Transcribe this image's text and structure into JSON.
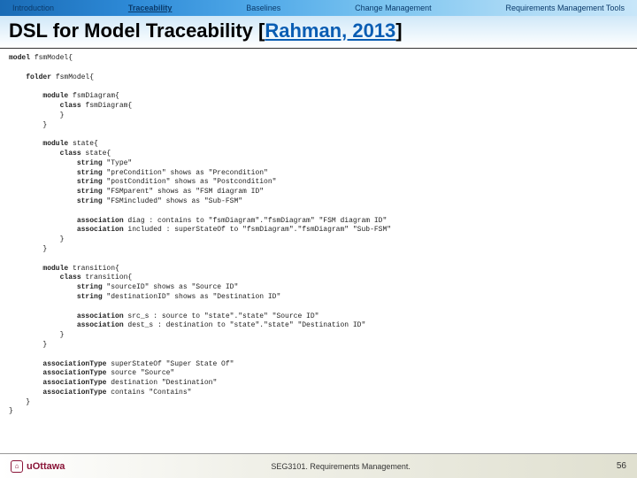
{
  "tabs": {
    "items": [
      {
        "label": "Introduction"
      },
      {
        "label": "Traceability"
      },
      {
        "label": "Baselines"
      },
      {
        "label": "Change Management"
      },
      {
        "label": "Requirements Management Tools"
      }
    ],
    "activeIndex": 1
  },
  "title": {
    "main": "DSL for Model Traceability [",
    "citation": "Rahman, 2013",
    "close": "]"
  },
  "code": {
    "lines": [
      {
        "indent": 0,
        "kw": "model",
        "rest": " fsmModel{"
      },
      {
        "indent": 0,
        "kw": "",
        "rest": ""
      },
      {
        "indent": 1,
        "kw": "folder",
        "rest": " fsmModel{"
      },
      {
        "indent": 0,
        "kw": "",
        "rest": ""
      },
      {
        "indent": 2,
        "kw": "module",
        "rest": " fsmDiagram{"
      },
      {
        "indent": 3,
        "kw": "class",
        "rest": " fsmDiagram{"
      },
      {
        "indent": 3,
        "kw": "",
        "rest": "}"
      },
      {
        "indent": 2,
        "kw": "",
        "rest": "}"
      },
      {
        "indent": 0,
        "kw": "",
        "rest": ""
      },
      {
        "indent": 2,
        "kw": "module",
        "rest": " state{"
      },
      {
        "indent": 3,
        "kw": "class",
        "rest": " state{"
      },
      {
        "indent": 4,
        "kw": "string",
        "rest": " \"Type\""
      },
      {
        "indent": 4,
        "kw": "string",
        "rest": " \"preCondition\" shows as \"Precondition\""
      },
      {
        "indent": 4,
        "kw": "string",
        "rest": " \"postCondition\" shows as \"Postcondition\""
      },
      {
        "indent": 4,
        "kw": "string",
        "rest": " \"FSMparent\" shows as \"FSM diagram ID\""
      },
      {
        "indent": 4,
        "kw": "string",
        "rest": " \"FSMincluded\" shows as \"Sub-FSM\""
      },
      {
        "indent": 0,
        "kw": "",
        "rest": ""
      },
      {
        "indent": 4,
        "kw": "association",
        "rest": " diag : contains to \"fsmDiagram\".\"fsmDiagram\" \"FSM diagram ID\""
      },
      {
        "indent": 4,
        "kw": "association",
        "rest": " included : superStateOf to \"fsmDiagram\".\"fsmDiagram\" \"Sub-FSM\""
      },
      {
        "indent": 3,
        "kw": "",
        "rest": "}"
      },
      {
        "indent": 2,
        "kw": "",
        "rest": "}"
      },
      {
        "indent": 0,
        "kw": "",
        "rest": ""
      },
      {
        "indent": 2,
        "kw": "module",
        "rest": " transition{"
      },
      {
        "indent": 3,
        "kw": "class",
        "rest": " transition{"
      },
      {
        "indent": 4,
        "kw": "string",
        "rest": " \"sourceID\" shows as \"Source ID\""
      },
      {
        "indent": 4,
        "kw": "string",
        "rest": " \"destinationID\" shows as \"Destination ID\""
      },
      {
        "indent": 0,
        "kw": "",
        "rest": ""
      },
      {
        "indent": 4,
        "kw": "association",
        "rest": " src_s : source to \"state\".\"state\" \"Source ID\""
      },
      {
        "indent": 4,
        "kw": "association",
        "rest": " dest_s : destination to \"state\".\"state\" \"Destination ID\""
      },
      {
        "indent": 3,
        "kw": "",
        "rest": "}"
      },
      {
        "indent": 2,
        "kw": "",
        "rest": "}"
      },
      {
        "indent": 0,
        "kw": "",
        "rest": ""
      },
      {
        "indent": 2,
        "kw": "associationType",
        "rest": " superStateOf \"Super State Of\""
      },
      {
        "indent": 2,
        "kw": "associationType",
        "rest": " source \"Source\""
      },
      {
        "indent": 2,
        "kw": "associationType",
        "rest": " destination \"Destination\""
      },
      {
        "indent": 2,
        "kw": "associationType",
        "rest": " contains \"Contains\""
      },
      {
        "indent": 1,
        "kw": "",
        "rest": "}"
      },
      {
        "indent": 0,
        "kw": "",
        "rest": "}"
      }
    ],
    "indentUnit": "    "
  },
  "footer": {
    "logo": "uOttawa",
    "center": "SEG3101. Requirements Management.",
    "page": "56"
  }
}
